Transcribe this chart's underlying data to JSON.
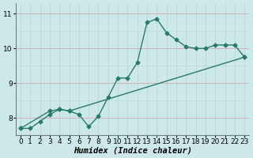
{
  "line1_x": [
    0,
    1,
    2,
    3,
    4,
    5,
    6,
    7,
    8,
    9,
    10,
    11,
    12,
    13,
    14,
    15,
    16,
    17,
    18,
    19,
    20,
    21,
    22,
    23
  ],
  "line1_y": [
    7.7,
    7.7,
    7.9,
    8.1,
    8.25,
    8.2,
    8.1,
    7.75,
    8.05,
    8.6,
    9.15,
    9.15,
    9.6,
    10.75,
    10.85,
    10.45,
    10.25,
    10.05,
    10.0,
    10.0,
    10.1,
    10.1,
    10.1,
    9.75
  ],
  "line2_x": [
    0,
    3,
    4,
    5,
    23
  ],
  "line2_y": [
    7.7,
    8.2,
    8.25,
    8.2,
    9.75
  ],
  "color": "#2a7a6a",
  "bg_color": "#cce8e8",
  "grid_h_color": "#b8d8d0",
  "grid_v_color": "#b8d8d0",
  "grid_red_color": "#d4a8a8",
  "xlim": [
    -0.5,
    23.5
  ],
  "ylim": [
    7.5,
    11.3
  ],
  "yticks": [
    8,
    9,
    10,
    11
  ],
  "xticks": [
    0,
    1,
    2,
    3,
    4,
    5,
    6,
    7,
    8,
    9,
    10,
    11,
    12,
    13,
    14,
    15,
    16,
    17,
    18,
    19,
    20,
    21,
    22,
    23
  ],
  "xlabel": "Humidex (Indice chaleur)",
  "xlabel_fontsize": 7.5,
  "tick_fontsize": 6.5,
  "marker": "D",
  "markersize": 2.5,
  "linewidth": 1.0
}
